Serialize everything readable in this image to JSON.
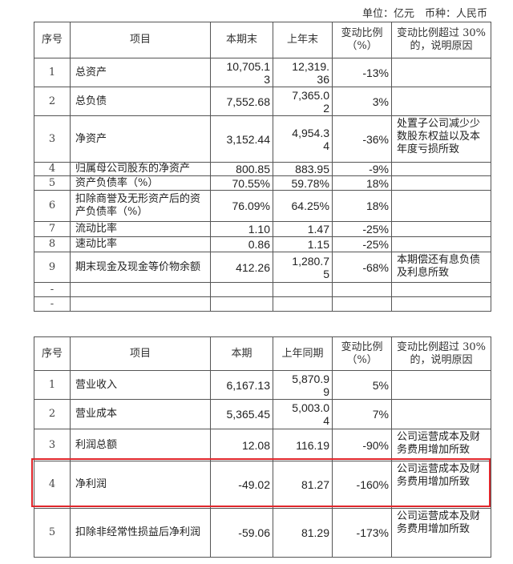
{
  "unit_label": "单位：亿元　币种：人民币",
  "table1": {
    "headers": [
      "序号",
      "项目",
      "本期末",
      "上年末",
      "变动比例（%）",
      "变动比例超过 30%的，说明原因"
    ],
    "rows": [
      {
        "no": "1",
        "item": "总资产",
        "cur": "10,705.13",
        "prev": "12,319.36",
        "chg": "-13%",
        "note": ""
      },
      {
        "no": "2",
        "item": "总负债",
        "cur": "7,552.68",
        "prev": "7,365.02",
        "chg": "3%",
        "note": ""
      },
      {
        "no": "3",
        "item": "净资产",
        "cur": "3,152.44",
        "prev": "4,954.34",
        "chg": "-36%",
        "note": "处置子公司减少少数股东权益以及本年度亏损所致"
      },
      {
        "no": "4",
        "item": "归属母公司股东的净资产",
        "cur": "800.85",
        "prev": "883.95",
        "chg": "-9%",
        "note": ""
      },
      {
        "no": "5",
        "item": "资产负债率（%）",
        "cur": "70.55%",
        "prev": "59.78%",
        "chg": "18%",
        "note": ""
      },
      {
        "no": "6",
        "item": "扣除商誉及无形资产后的资产负债率（%）",
        "cur": "76.09%",
        "prev": "64.25%",
        "chg": "18%",
        "note": ""
      },
      {
        "no": "7",
        "item": "流动比率",
        "cur": "1.10",
        "prev": "1.47",
        "chg": "-25%",
        "note": ""
      },
      {
        "no": "8",
        "item": "速动比率",
        "cur": "0.86",
        "prev": "1.15",
        "chg": "-25%",
        "note": ""
      },
      {
        "no": "9",
        "item": "期末现金及现金等价物余额",
        "cur": "412.26",
        "prev": "1,280.75",
        "chg": "-68%",
        "note": "本期偿还有息负债及利息所致"
      },
      {
        "no": "-",
        "item": "",
        "cur": "",
        "prev": "",
        "chg": "",
        "note": ""
      },
      {
        "no": "-",
        "item": "",
        "cur": "",
        "prev": "",
        "chg": "",
        "note": ""
      }
    ]
  },
  "table2": {
    "headers": [
      "序号",
      "项目",
      "本期",
      "上年同期",
      "变动比例（%）",
      "变动比例超过 30%的，说明原因"
    ],
    "rows": [
      {
        "no": "1",
        "item": "营业收入",
        "cur": "6,167.13",
        "prev": "5,870.99",
        "chg": "5%",
        "note": ""
      },
      {
        "no": "2",
        "item": "营业成本",
        "cur": "5,365.45",
        "prev": "5,003.04",
        "chg": "7%",
        "note": ""
      },
      {
        "no": "3",
        "item": "利润总额",
        "cur": "12.08",
        "prev": "116.19",
        "chg": "-90%",
        "note": "公司运营成本及财务费用增加所致"
      },
      {
        "no": "4",
        "item": "净利润",
        "cur": "-49.02",
        "prev": "81.27",
        "chg": "-160%",
        "note": "公司运营成本及财务费用增加所致"
      },
      {
        "no": "5",
        "item": "扣除非经常性损益后净利润",
        "cur": "-59.06",
        "prev": "81.29",
        "chg": "-173%",
        "note": "公司运营成本及财务费用增加所致"
      }
    ]
  },
  "highlight_color": "#e0262b"
}
